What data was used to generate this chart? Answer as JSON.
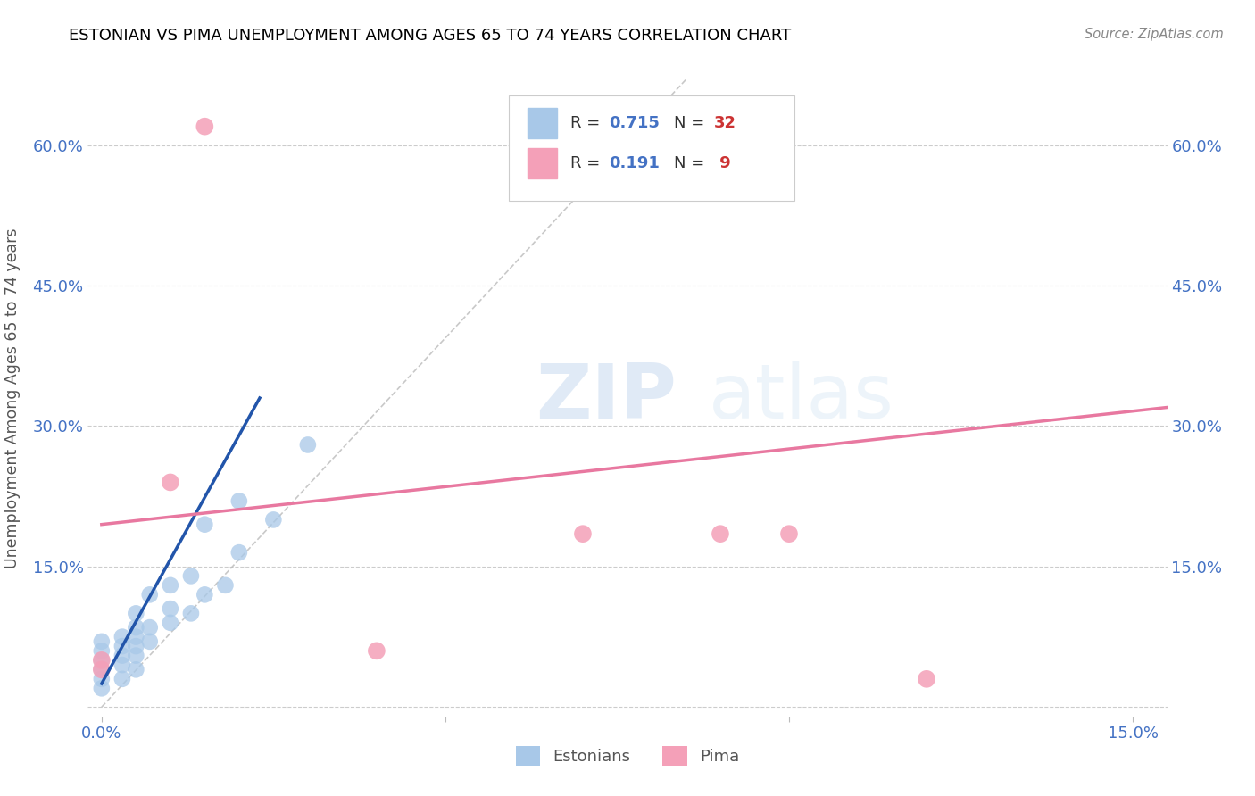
{
  "title": "ESTONIAN VS PIMA UNEMPLOYMENT AMONG AGES 65 TO 74 YEARS CORRELATION CHART",
  "source": "Source: ZipAtlas.com",
  "ylabel": "Unemployment Among Ages 65 to 74 years",
  "xlim": [
    -0.002,
    0.155
  ],
  "ylim": [
    -0.01,
    0.67
  ],
  "xticks": [
    0.0,
    0.05,
    0.1,
    0.15
  ],
  "yticks": [
    0.0,
    0.15,
    0.3,
    0.45,
    0.6
  ],
  "xtick_labels": [
    "0.0%",
    "",
    "",
    "15.0%"
  ],
  "ytick_labels": [
    "",
    "15.0%",
    "30.0%",
    "45.0%",
    "60.0%"
  ],
  "r_estonian": "0.715",
  "n_estonian": "32",
  "r_pima": "0.191",
  "n_pima": " 9",
  "color_estonian": "#a8c8e8",
  "color_pima": "#f4a0b8",
  "trendline_estonian_color": "#2255aa",
  "trendline_pima_color": "#e878a0",
  "watermark_zip": "ZIP",
  "watermark_atlas": "atlas",
  "estonian_x": [
    0.0,
    0.0,
    0.0,
    0.0,
    0.0,
    0.0,
    0.003,
    0.003,
    0.003,
    0.003,
    0.003,
    0.005,
    0.005,
    0.005,
    0.005,
    0.005,
    0.005,
    0.007,
    0.007,
    0.007,
    0.01,
    0.01,
    0.01,
    0.013,
    0.013,
    0.015,
    0.015,
    0.018,
    0.02,
    0.02,
    0.025,
    0.03
  ],
  "estonian_y": [
    0.02,
    0.03,
    0.04,
    0.05,
    0.06,
    0.07,
    0.03,
    0.045,
    0.055,
    0.065,
    0.075,
    0.04,
    0.055,
    0.065,
    0.075,
    0.085,
    0.1,
    0.07,
    0.085,
    0.12,
    0.09,
    0.105,
    0.13,
    0.1,
    0.14,
    0.12,
    0.195,
    0.13,
    0.165,
    0.22,
    0.2,
    0.28
  ],
  "pima_x": [
    0.0,
    0.0,
    0.01,
    0.015,
    0.04,
    0.07,
    0.09,
    0.1,
    0.12
  ],
  "pima_y": [
    0.04,
    0.05,
    0.24,
    0.62,
    0.06,
    0.185,
    0.185,
    0.185,
    0.03
  ],
  "estonian_trendline_x": [
    0.0,
    0.023
  ],
  "estonian_trendline_y": [
    0.025,
    0.33
  ],
  "pima_trendline_x": [
    0.0,
    0.155
  ],
  "pima_trendline_y": [
    0.195,
    0.32
  ],
  "dashed_line_x": [
    0.0,
    0.085
  ],
  "dashed_line_y": [
    0.0,
    0.67
  ]
}
